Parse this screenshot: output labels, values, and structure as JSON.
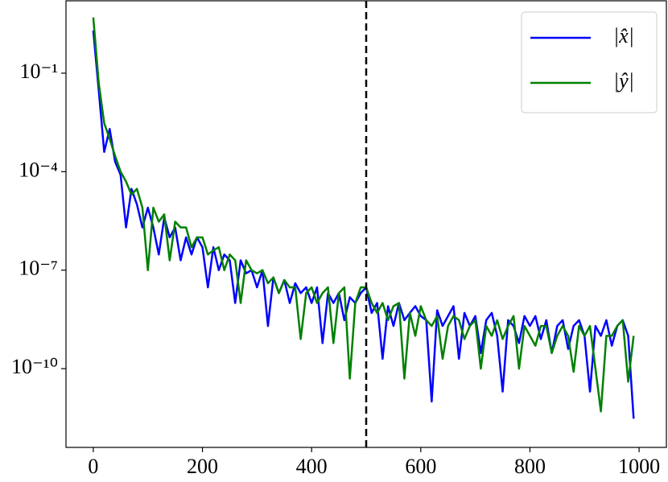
{
  "chart_data": {
    "type": "line",
    "yscale": "log",
    "legend": "upper right",
    "xlim": [
      -50,
      1050
    ],
    "ylim": [
      4e-13,
      16
    ],
    "xticks": [
      0,
      200,
      400,
      600,
      800,
      1000
    ],
    "yticks": [
      {
        "value": 0.1,
        "label": "10⁻¹"
      },
      {
        "value": 0.0001,
        "label": "10⁻⁴"
      },
      {
        "value": 1e-07,
        "label": "10⁻⁷"
      },
      {
        "value": 1e-10,
        "label": "10⁻¹⁰"
      }
    ],
    "vline": {
      "x": 500,
      "color": "#000000",
      "style": "dashed"
    },
    "x": [
      0,
      10,
      20,
      30,
      40,
      50,
      60,
      70,
      80,
      90,
      100,
      110,
      120,
      130,
      140,
      150,
      160,
      170,
      180,
      190,
      200,
      210,
      220,
      230,
      240,
      250,
      260,
      270,
      280,
      290,
      300,
      310,
      320,
      330,
      340,
      350,
      360,
      370,
      380,
      390,
      400,
      410,
      420,
      430,
      440,
      450,
      460,
      470,
      480,
      490,
      500,
      510,
      520,
      530,
      540,
      550,
      560,
      570,
      580,
      590,
      600,
      610,
      620,
      630,
      640,
      650,
      660,
      670,
      680,
      690,
      700,
      710,
      720,
      730,
      740,
      750,
      760,
      770,
      780,
      790,
      800,
      810,
      820,
      830,
      840,
      850,
      860,
      870,
      880,
      890,
      900,
      910,
      920,
      930,
      940,
      950,
      960,
      970,
      980,
      990
    ],
    "series": [
      {
        "name": "|x̂|",
        "color": "#0000ff",
        "values": [
          2,
          0.03,
          0.0004,
          0.002,
          0.0002,
          8e-05,
          2e-06,
          3e-05,
          1e-05,
          2e-06,
          8e-06,
          2e-06,
          3e-07,
          4e-06,
          1e-06,
          2e-06,
          2e-07,
          1e-06,
          3e-07,
          1e-06,
          5e-07,
          3e-08,
          5e-07,
          1e-07,
          3e-07,
          2e-07,
          1e-08,
          2e-07,
          8e-08,
          1e-07,
          3e-08,
          1e-07,
          2e-09,
          6e-08,
          2e-08,
          5e-08,
          1e-08,
          4e-08,
          2e-08,
          3e-08,
          1e-08,
          3e-08,
          6e-10,
          2e-08,
          1e-08,
          2e-08,
          3e-09,
          1.5e-08,
          1e-08,
          2e-08,
          3e-08,
          5e-09,
          1e-08,
          2e-10,
          8e-09,
          2e-09,
          1e-08,
          3e-09,
          5e-09,
          8e-09,
          4e-09,
          3e-09,
          1e-11,
          6e-09,
          2e-09,
          4e-09,
          8e-09,
          2e-10,
          5e-09,
          2e-09,
          4e-09,
          3e-10,
          3e-09,
          5e-09,
          1e-09,
          2e-11,
          3e-09,
          2e-09,
          6e-10,
          4e-09,
          2e-09,
          4e-09,
          8e-10,
          3e-09,
          3e-10,
          2e-09,
          3e-09,
          4e-10,
          2e-09,
          3e-09,
          1e-09,
          2e-11,
          2e-09,
          1e-09,
          3e-09,
          5e-10,
          2e-09,
          3e-09,
          1e-09,
          3e-12
        ]
      },
      {
        "name": "|ŷ|",
        "color": "#008000",
        "values": [
          5,
          0.05,
          0.003,
          0.001,
          0.0003,
          0.0001,
          5e-05,
          2e-05,
          3e-05,
          8e-06,
          1e-07,
          8e-06,
          3e-06,
          5e-06,
          2e-07,
          3e-06,
          2e-06,
          2e-06,
          5e-07,
          1e-06,
          1e-06,
          3e-07,
          4e-07,
          5e-07,
          1e-07,
          3e-07,
          2e-07,
          1e-08,
          2e-07,
          1e-07,
          8e-08,
          1e-07,
          4e-08,
          6e-08,
          2e-08,
          5e-08,
          3e-08,
          3e-08,
          8e-10,
          2e-08,
          3e-08,
          1e-08,
          2e-08,
          3e-08,
          6e-10,
          2e-08,
          3e-08,
          5e-11,
          1e-08,
          3e-08,
          3e-08,
          1e-08,
          5e-09,
          1e-08,
          3e-09,
          8e-09,
          1e-08,
          5e-11,
          5e-09,
          1e-09,
          8e-09,
          3e-09,
          2e-09,
          4e-09,
          2e-10,
          2e-09,
          4e-09,
          3e-09,
          8e-10,
          2e-09,
          3e-09,
          1e-10,
          2e-09,
          1e-09,
          3e-09,
          8e-10,
          2e-09,
          4e-09,
          1e-10,
          2e-09,
          1e-09,
          5e-10,
          2e-09,
          2e-09,
          3e-10,
          1e-09,
          2e-09,
          1e-09,
          8e-11,
          2e-09,
          1e-09,
          2e-09,
          1e-10,
          5e-12,
          1e-09,
          1e-09,
          2e-09,
          3e-09,
          4e-11,
          1e-09
        ]
      }
    ]
  }
}
